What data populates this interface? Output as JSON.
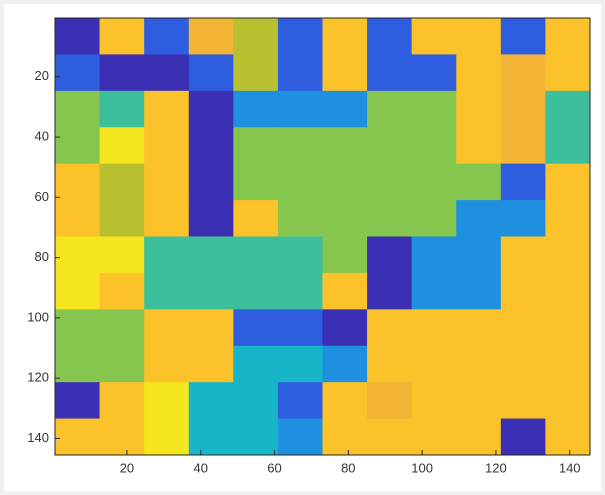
{
  "chart_data": {
    "type": "image",
    "xlim": [
      0.5,
      145.5
    ],
    "ylim": [
      0.5,
      145.5
    ],
    "y_direction": "reverse",
    "xticks": [
      20,
      40,
      60,
      80,
      100,
      120,
      140
    ],
    "yticks": [
      20,
      40,
      60,
      80,
      100,
      120,
      140
    ],
    "colormap": [
      "#3b2fb4",
      "#2f5de0",
      "#1f8fe0",
      "#16b6c8",
      "#3cbf9a",
      "#86c64e",
      "#b8c030",
      "#f4b436",
      "#fbc22a",
      "#f5e620"
    ],
    "clim": [
      1,
      10
    ],
    "z": [
      [
        1,
        9,
        2,
        8,
        7,
        2,
        9,
        2,
        9,
        9,
        2,
        9
      ],
      [
        2,
        1,
        1,
        2,
        7,
        2,
        9,
        2,
        2,
        9,
        8,
        9
      ],
      [
        6,
        5,
        9,
        1,
        3,
        3,
        3,
        6,
        6,
        9,
        8,
        5
      ],
      [
        6,
        10,
        9,
        1,
        6,
        6,
        6,
        6,
        6,
        9,
        8,
        5
      ],
      [
        9,
        7,
        9,
        1,
        6,
        6,
        6,
        6,
        6,
        6,
        2,
        9
      ],
      [
        9,
        7,
        9,
        1,
        9,
        6,
        6,
        6,
        6,
        3,
        3,
        9
      ],
      [
        10,
        10,
        5,
        5,
        5,
        5,
        6,
        1,
        3,
        3,
        9,
        9
      ],
      [
        10,
        9,
        5,
        5,
        5,
        5,
        9,
        1,
        3,
        3,
        9,
        9
      ],
      [
        6,
        6,
        9,
        9,
        2,
        2,
        1,
        9,
        9,
        9,
        9,
        9
      ],
      [
        6,
        6,
        9,
        9,
        4,
        4,
        3,
        9,
        9,
        9,
        9,
        9
      ],
      [
        1,
        9,
        10,
        4,
        4,
        2,
        9,
        8,
        9,
        9,
        9,
        9
      ],
      [
        9,
        9,
        10,
        4,
        4,
        3,
        9,
        9,
        9,
        9,
        1,
        9
      ]
    ]
  }
}
